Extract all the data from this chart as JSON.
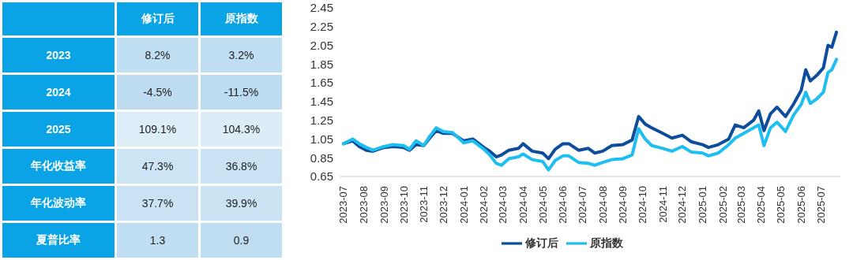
{
  "chart_data": [
    {
      "type": "heatmap",
      "categories": [
        "修订后",
        "原指数"
      ],
      "y_categories": [
        "2023",
        "2024",
        "2025",
        "年化收益率",
        "年化波动率",
        "夏普比率"
      ],
      "cells": [
        [
          8.2,
          3.2
        ],
        [
          -4.5,
          -11.5
        ],
        [
          109.1,
          104.3
        ],
        [
          47.3,
          36.8
        ],
        [
          37.7,
          39.9
        ],
        [
          1.3,
          0.9
        ]
      ],
      "cell_labels": [
        [
          "8.2%",
          "3.2%"
        ],
        [
          "-4.5%",
          "-11.5%"
        ],
        [
          "109.1%",
          "104.3%"
        ],
        [
          "47.3%",
          "36.8%"
        ],
        [
          "37.7%",
          "39.9%"
        ],
        [
          "1.3",
          "0.9"
        ]
      ]
    },
    {
      "type": "line",
      "legend": "bottom",
      "grid": false,
      "line_style": "solid",
      "marker": "none",
      "xlim": [
        "2023-06-25",
        "2025-07-31"
      ],
      "ylim": [
        0.65,
        2.45
      ],
      "yticks": [
        0.65,
        0.85,
        1.05,
        1.25,
        1.45,
        1.65,
        1.85,
        2.05,
        2.25,
        2.45
      ],
      "xticks": [
        {
          "value": "2023-07",
          "label": "2023-07"
        },
        {
          "value": "2023-08",
          "label": "2023-08"
        },
        {
          "value": "2023-09",
          "label": "2023-09"
        },
        {
          "value": "2023-10",
          "label": "2023-10"
        },
        {
          "value": "2023-11",
          "label": "2023-11"
        },
        {
          "value": "2023-12",
          "label": "2023-12"
        },
        {
          "value": "2024-01",
          "label": "2024-01"
        },
        {
          "value": "2024-02",
          "label": "2024-02"
        },
        {
          "value": "2024-03",
          "label": "2024-03"
        },
        {
          "value": "2024-04",
          "label": "2024-04"
        },
        {
          "value": "2024-05",
          "label": "2024-05"
        },
        {
          "value": "2024-06",
          "label": "2024-06"
        },
        {
          "value": "2024-07",
          "label": "2024-07"
        },
        {
          "value": "2024-08",
          "label": "2024-08"
        },
        {
          "value": "2024-09",
          "label": "2024-09"
        },
        {
          "value": "2024-10",
          "label": "2024-10"
        },
        {
          "value": "2024-11",
          "label": "2024-11"
        },
        {
          "value": "2024-12",
          "label": "2024-12"
        },
        {
          "value": "2025-01",
          "label": "2025-01"
        },
        {
          "value": "2025-02",
          "label": "2025-02"
        },
        {
          "value": "2025-03",
          "label": "2025-03"
        },
        {
          "value": "2025-04",
          "label": "2025-04"
        },
        {
          "value": "2025-05",
          "label": "2025-05"
        },
        {
          "value": "2025-06",
          "label": "2025-06"
        },
        {
          "value": "2025-07",
          "label": "2025-07"
        }
      ],
      "x": [
        "2023-07-01",
        "2023-07-15",
        "2023-07-25",
        "2023-08-05",
        "2023-08-15",
        "2023-09-01",
        "2023-09-15",
        "2023-10-01",
        "2023-10-10",
        "2023-10-20",
        "2023-11-01",
        "2023-11-10",
        "2023-11-20",
        "2023-12-01",
        "2023-12-15",
        "2024-01-01",
        "2024-01-15",
        "2024-02-01",
        "2024-02-10",
        "2024-02-20",
        "2024-02-28",
        "2024-03-10",
        "2024-03-25",
        "2024-04-01",
        "2024-04-15",
        "2024-05-01",
        "2024-05-10",
        "2024-05-20",
        "2024-06-01",
        "2024-06-10",
        "2024-06-25",
        "2024-07-10",
        "2024-07-20",
        "2024-08-01",
        "2024-08-15",
        "2024-09-01",
        "2024-09-15",
        "2024-09-25",
        "2024-10-05",
        "2024-10-15",
        "2024-11-01",
        "2024-11-15",
        "2024-12-01",
        "2024-12-15",
        "2025-01-01",
        "2025-01-10",
        "2025-01-25",
        "2025-02-10",
        "2025-02-20",
        "2025-03-05",
        "2025-03-20",
        "2025-03-28",
        "2025-04-05",
        "2025-04-15",
        "2025-04-25",
        "2025-05-08",
        "2025-05-20",
        "2025-06-01",
        "2025-06-08",
        "2025-06-15",
        "2025-06-25",
        "2025-07-05",
        "2025-07-12",
        "2025-07-18",
        "2025-07-25"
      ],
      "series": [
        {
          "name": "修订后",
          "color": "#0e4d9c",
          "values": [
            1.0,
            1.03,
            0.97,
            0.93,
            0.92,
            0.96,
            0.97,
            0.96,
            0.93,
            0.99,
            0.98,
            1.06,
            1.14,
            1.11,
            1.11,
            1.03,
            1.05,
            0.96,
            0.92,
            0.86,
            0.88,
            0.93,
            0.95,
            1.0,
            0.92,
            0.9,
            0.84,
            0.94,
            1.0,
            1.0,
            0.93,
            0.95,
            0.9,
            0.92,
            0.98,
            0.99,
            1.04,
            1.29,
            1.21,
            1.17,
            1.11,
            1.06,
            1.09,
            1.02,
            0.99,
            0.96,
            0.99,
            1.05,
            1.2,
            1.17,
            1.25,
            1.35,
            1.14,
            1.32,
            1.39,
            1.29,
            1.42,
            1.57,
            1.79,
            1.67,
            1.73,
            1.81,
            2.05,
            2.03,
            2.19
          ]
        },
        {
          "name": "原指数",
          "color": "#1fbef0",
          "values": [
            1.0,
            1.05,
            1.0,
            0.96,
            0.93,
            0.97,
            0.99,
            0.98,
            0.94,
            1.03,
            0.98,
            1.08,
            1.17,
            1.13,
            1.12,
            1.01,
            1.03,
            0.94,
            0.88,
            0.79,
            0.77,
            0.84,
            0.86,
            0.89,
            0.83,
            0.81,
            0.72,
            0.82,
            0.87,
            0.87,
            0.8,
            0.79,
            0.77,
            0.8,
            0.83,
            0.84,
            0.88,
            1.16,
            1.05,
            0.98,
            0.95,
            0.92,
            0.97,
            0.91,
            0.9,
            0.87,
            0.9,
            0.99,
            1.06,
            1.11,
            1.17,
            1.2,
            0.98,
            1.17,
            1.23,
            1.13,
            1.3,
            1.42,
            1.55,
            1.43,
            1.48,
            1.55,
            1.76,
            1.79,
            1.9
          ]
        }
      ]
    }
  ]
}
